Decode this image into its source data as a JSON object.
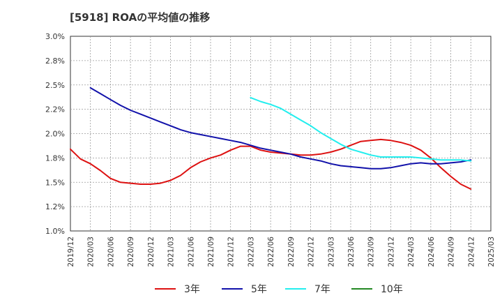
{
  "chart_data": {
    "type": "line",
    "title": "[5918]  ROAの平均値の推移",
    "xlabel": "",
    "ylabel": "",
    "ylim": [
      1.0,
      3.0
    ],
    "y_ticks": [
      "1.0%",
      "1.2%",
      "1.5%",
      "1.8%",
      "2.0%",
      "2.2%",
      "2.5%",
      "2.8%",
      "3.0%"
    ],
    "x_ticks": [
      "2019/12",
      "2020/03",
      "2020/06",
      "2020/09",
      "2020/12",
      "2021/03",
      "2021/06",
      "2021/09",
      "2021/12",
      "2022/03",
      "2022/06",
      "2022/09",
      "2022/12",
      "2023/03",
      "2023/06",
      "2023/09",
      "2023/12",
      "2024/03",
      "2024/06",
      "2024/09",
      "2024/12",
      "2025/03"
    ],
    "grid": true,
    "legend_position": "bottom",
    "series": [
      {
        "name": "3年",
        "color": "#dd1111",
        "values": [
          1.84,
          1.74,
          1.69,
          1.62,
          1.54,
          1.5,
          1.49,
          1.48,
          1.48,
          1.49,
          1.52,
          1.57,
          1.65,
          1.71,
          1.75,
          1.78,
          1.83,
          1.87,
          1.87,
          1.83,
          1.81,
          1.8,
          1.79,
          1.78,
          1.78,
          1.79,
          1.81,
          1.84,
          1.88,
          1.92,
          1.93,
          1.94,
          1.93,
          1.91,
          1.88,
          1.83,
          1.75,
          1.65,
          1.56,
          1.48,
          1.43
        ]
      },
      {
        "name": "5年",
        "color": "#1111aa",
        "values": [
          null,
          null,
          2.47,
          2.41,
          2.35,
          2.29,
          2.24,
          2.2,
          2.16,
          2.12,
          2.08,
          2.04,
          2.01,
          1.99,
          1.97,
          1.95,
          1.93,
          1.91,
          1.88,
          1.85,
          1.83,
          1.81,
          1.79,
          1.76,
          1.74,
          1.72,
          1.69,
          1.67,
          1.66,
          1.65,
          1.64,
          1.64,
          1.65,
          1.67,
          1.69,
          1.7,
          1.69,
          1.69,
          1.7,
          1.71,
          1.73
        ]
      },
      {
        "name": "7年",
        "color": "#22eeee",
        "values": [
          null,
          null,
          null,
          null,
          null,
          null,
          null,
          null,
          null,
          null,
          null,
          null,
          null,
          null,
          null,
          null,
          null,
          null,
          2.37,
          2.33,
          2.3,
          2.26,
          2.2,
          2.14,
          2.08,
          2.01,
          1.95,
          1.89,
          1.84,
          1.81,
          1.78,
          1.76,
          1.76,
          1.76,
          1.76,
          1.75,
          1.74,
          1.73,
          1.73,
          1.73,
          1.72
        ]
      },
      {
        "name": "10年",
        "color": "#228822",
        "values": []
      }
    ]
  }
}
